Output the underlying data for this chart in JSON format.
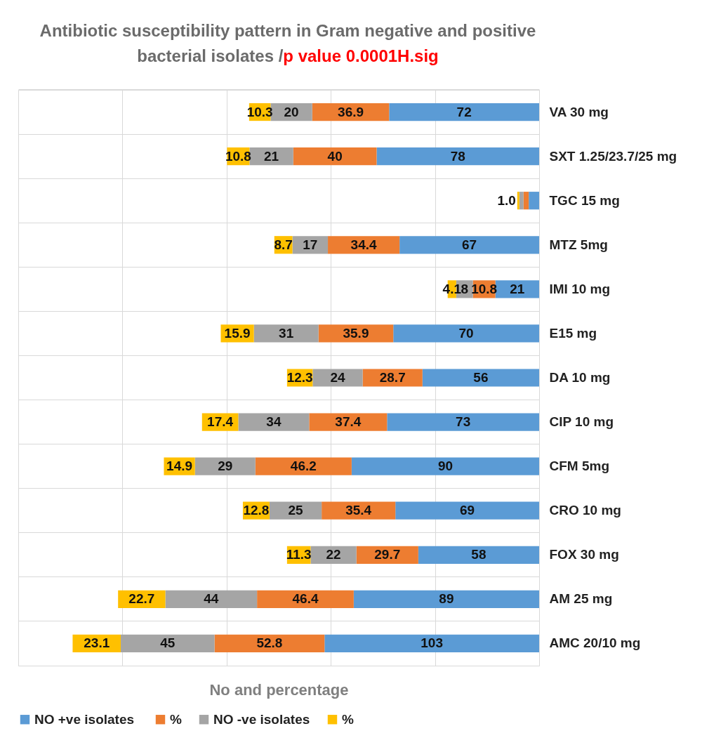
{
  "chart_data": {
    "type": "bar",
    "orientation": "horizontal",
    "stacked": true,
    "title": "Antibiotic susceptibility pattern in Gram negative and positive bacterial isolates /",
    "subtitle": "p value 0.0001H.sig",
    "xlabel": "No and percentage",
    "categories": [
      "VA 30 mg",
      "SXT 1.25/23.7/25 mg",
      "TGC 15 mg",
      "MTZ 5mg",
      "IMI 10 mg",
      "E15 mg",
      "DA 10 mg",
      "CIP 10 mg",
      "CFM 5mg",
      "CRO 10 mg",
      "FOX 30 mg",
      "AM 25 mg",
      "AMC 20/10 mg"
    ],
    "series": [
      {
        "name": "NO  +ve isolates",
        "color": "#5b9bd5",
        "values": [
          72,
          78,
          5,
          67,
          21,
          70,
          56,
          73,
          90,
          69,
          58,
          89,
          103
        ],
        "value_labels": [
          "72",
          "78",
          null,
          "67",
          "21",
          "70",
          "56",
          "73",
          "90",
          "69",
          "58",
          "89",
          "103"
        ]
      },
      {
        "name": "%",
        "color": "#ed7d31",
        "values": [
          36.9,
          40,
          2.5,
          34.4,
          10.8,
          35.9,
          28.7,
          37.4,
          46.2,
          35.4,
          29.7,
          46.4,
          52.8
        ],
        "value_labels": [
          "36.9",
          "40",
          null,
          "34.4",
          "10.8",
          "35.9",
          "28.7",
          "37.4",
          "46.2",
          "35.4",
          "29.7",
          "46.4",
          "52.8"
        ]
      },
      {
        "name": "NO -ve isolates",
        "color": "#a5a5a5",
        "values": [
          20,
          21,
          2,
          17,
          8,
          31,
          24,
          34,
          29,
          25,
          22,
          44,
          45
        ],
        "value_labels": [
          "20",
          "21",
          null,
          "17",
          "8",
          "31",
          "24",
          "34",
          "29",
          "25",
          "22",
          "44",
          "45"
        ]
      },
      {
        "name": "%",
        "color": "#ffc000",
        "values": [
          10.3,
          10.8,
          1.0,
          8.7,
          4.1,
          15.9,
          12.3,
          17.4,
          14.9,
          12.8,
          11.3,
          22.7,
          23.1
        ],
        "value_labels": [
          "10.3",
          "10.8",
          "1.0",
          "8.7",
          "4.1",
          "15.9",
          "12.3",
          "17.4",
          "14.9",
          "12.8",
          "11.3",
          "22.7",
          "23.1"
        ]
      }
    ],
    "xlim": [
      250,
      0
    ],
    "xticks": [
      0,
      50,
      100,
      150,
      200,
      250
    ],
    "tick_labels": "y",
    "grid": true,
    "legend": "bottom"
  }
}
